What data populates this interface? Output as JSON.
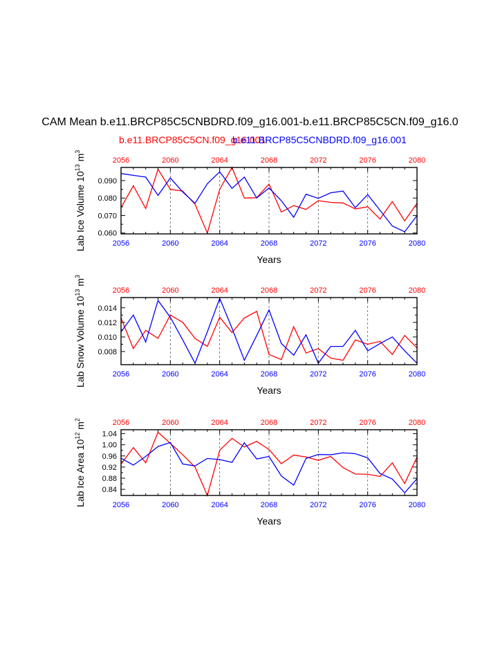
{
  "title": "CAM Mean b.e11.BRCP85C5CNBDRD.f09_g16.001-b.e11.BRCP85C5CN.f09_g16.0",
  "legend": {
    "red": "b.e11.BRCP85C5CN.f09_g16.001",
    "blue": "b.e11.BRCP85C5CNBDRD.f09_g16.001"
  },
  "colors": {
    "red_series": "#ff0000",
    "blue_series": "#0000ff",
    "axis": "#000000"
  },
  "chart_data": [
    {
      "type": "line",
      "ylabel_main": "Lab Ice Volume 10",
      "ylabel_exp": "13",
      "ylabel_unit": "m",
      "ylabel_unit_exp": "3",
      "xlabel": "Years",
      "x": [
        2056,
        2057,
        2058,
        2059,
        2060,
        2061,
        2062,
        2063,
        2064,
        2065,
        2066,
        2067,
        2068,
        2069,
        2070,
        2071,
        2072,
        2073,
        2074,
        2075,
        2076,
        2077,
        2078,
        2079,
        2080
      ],
      "xlim": [
        2056,
        2080
      ],
      "xticks": [
        "2056",
        "2060",
        "2064",
        "2068",
        "2072",
        "2076",
        "2080"
      ],
      "ylim": [
        0.0595,
        0.0975
      ],
      "yticks": [
        "0.060",
        "0.070",
        "0.080",
        "0.090"
      ],
      "ytick_values": [
        0.06,
        0.07,
        0.08,
        0.09
      ],
      "series": [
        {
          "name": "b.e11.BRCP85C5CN.f09_g16.001",
          "color": "red",
          "values": [
            0.0745,
            0.087,
            0.074,
            0.0965,
            0.085,
            0.084,
            0.0765,
            0.06,
            0.085,
            0.0975,
            0.08,
            0.0802,
            0.088,
            0.072,
            0.0757,
            0.0735,
            0.0785,
            0.0775,
            0.0772,
            0.0738,
            0.075,
            0.068,
            0.078,
            0.067,
            0.077
          ]
        },
        {
          "name": "b.e11.BRCP85C5CNBDRD.f09_g16.001",
          "color": "blue",
          "values": [
            0.094,
            0.093,
            0.092,
            0.0815,
            0.0915,
            0.0835,
            0.077,
            0.0882,
            0.095,
            0.0855,
            0.092,
            0.08,
            0.0858,
            0.0785,
            0.069,
            0.0822,
            0.0798,
            0.083,
            0.084,
            0.0745,
            0.082,
            0.073,
            0.064,
            0.0607,
            0.07
          ]
        }
      ]
    },
    {
      "type": "line",
      "ylabel_main": "Lab Snow Volume 10",
      "ylabel_exp": "13",
      "ylabel_unit": "m",
      "ylabel_unit_exp": "3",
      "xlabel": "Years",
      "x": [
        2056,
        2057,
        2058,
        2059,
        2060,
        2061,
        2062,
        2063,
        2064,
        2065,
        2066,
        2067,
        2068,
        2069,
        2070,
        2071,
        2072,
        2073,
        2074,
        2075,
        2076,
        2077,
        2078,
        2079,
        2080
      ],
      "xlim": [
        2056,
        2080
      ],
      "xticks": [
        "2056",
        "2060",
        "2064",
        "2068",
        "2072",
        "2076",
        "2080"
      ],
      "ylim": [
        0.0062,
        0.0154
      ],
      "yticks": [
        "0.008",
        "0.010",
        "0.012",
        "0.014"
      ],
      "ytick_values": [
        0.008,
        0.01,
        0.012,
        0.014
      ],
      "series": [
        {
          "name": "b.e11.BRCP85C5CN.f09_g16.001",
          "color": "red",
          "values": [
            0.0126,
            0.0084,
            0.0109,
            0.0098,
            0.013,
            0.012,
            0.0098,
            0.0087,
            0.0127,
            0.0106,
            0.0126,
            0.0135,
            0.0076,
            0.0069,
            0.0114,
            0.0078,
            0.0084,
            0.0071,
            0.0068,
            0.0096,
            0.009,
            0.0094,
            0.0076,
            0.0102,
            0.0085
          ]
        },
        {
          "name": "b.e11.BRCP85C5CNBDRD.f09_g16.001",
          "color": "blue",
          "values": [
            0.0107,
            0.013,
            0.0093,
            0.015,
            0.0127,
            0.0096,
            0.0064,
            0.0107,
            0.0153,
            0.0112,
            0.0068,
            0.0102,
            0.0137,
            0.0091,
            0.0075,
            0.0103,
            0.0064,
            0.0087,
            0.0087,
            0.0109,
            0.0081,
            0.0091,
            0.01,
            0.0081,
            0.0064
          ]
        }
      ]
    },
    {
      "type": "line",
      "ylabel_main": "Lab Ice Area 10",
      "ylabel_exp": "12",
      "ylabel_unit": "m",
      "ylabel_unit_exp": "2",
      "xlabel": "Years",
      "x": [
        2056,
        2057,
        2058,
        2059,
        2060,
        2061,
        2062,
        2063,
        2064,
        2065,
        2066,
        2067,
        2068,
        2069,
        2070,
        2071,
        2072,
        2073,
        2074,
        2075,
        2076,
        2077,
        2078,
        2079,
        2080
      ],
      "xlim": [
        2056,
        2080
      ],
      "xticks": [
        "2056",
        "2060",
        "2064",
        "2068",
        "2072",
        "2076",
        "2080"
      ],
      "ylim": [
        0.818,
        1.054
      ],
      "yticks": [
        "0.84",
        "0.88",
        "0.92",
        "0.96",
        "1.00",
        "1.04"
      ],
      "ytick_values": [
        0.84,
        0.88,
        0.92,
        0.96,
        1.0,
        1.04
      ],
      "series": [
        {
          "name": "b.e11.BRCP85C5CN.f09_g16.001",
          "color": "red",
          "values": [
            0.93,
            0.99,
            0.935,
            1.045,
            1.005,
            0.964,
            0.92,
            0.818,
            0.98,
            1.023,
            0.992,
            1.012,
            0.983,
            0.932,
            0.963,
            0.956,
            0.944,
            0.958,
            0.918,
            0.895,
            0.894,
            0.886,
            0.935,
            0.861,
            0.956
          ]
        },
        {
          "name": "b.e11.BRCP85C5CNBDRD.f09_g16.001",
          "color": "blue",
          "values": [
            0.952,
            0.927,
            0.958,
            0.994,
            1.008,
            0.931,
            0.924,
            0.951,
            0.947,
            0.937,
            1.007,
            0.949,
            0.958,
            0.888,
            0.855,
            0.951,
            0.965,
            0.964,
            0.971,
            0.968,
            0.953,
            0.897,
            0.877,
            0.828,
            0.878
          ]
        }
      ]
    }
  ]
}
